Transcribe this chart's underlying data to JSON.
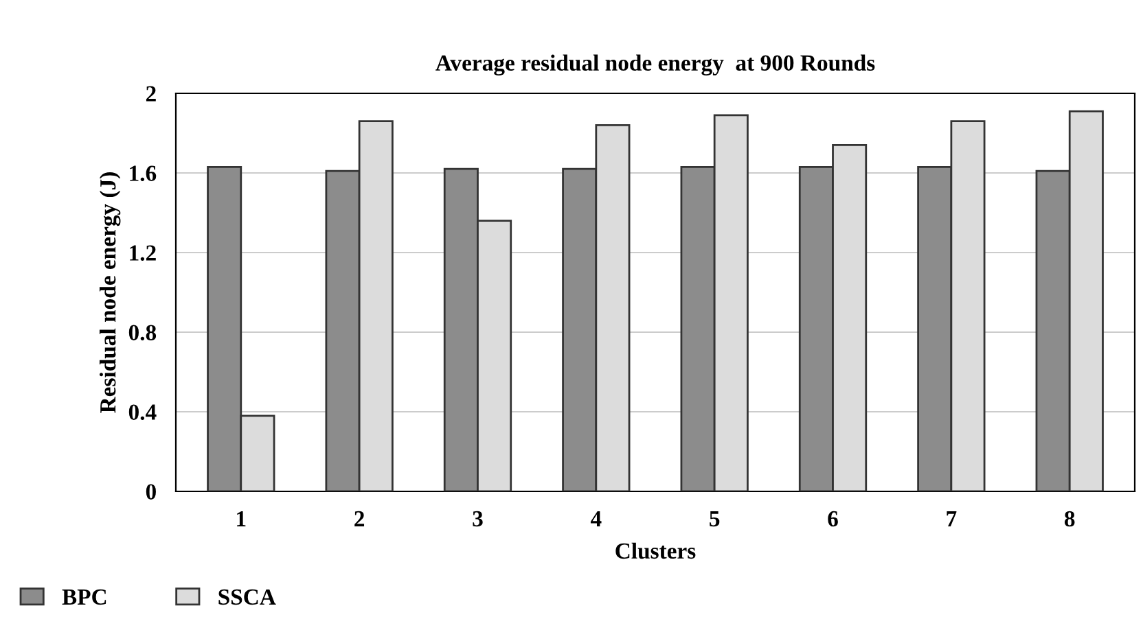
{
  "chart_data": {
    "type": "bar",
    "title": "Average residual node energy  at 900 Rounds",
    "xlabel": "Clusters",
    "ylabel": "Residual node energy (J)",
    "categories": [
      "1",
      "2",
      "3",
      "4",
      "5",
      "6",
      "7",
      "8"
    ],
    "series": [
      {
        "name": "BPC",
        "color": "#8c8c8c",
        "values": [
          1.63,
          1.61,
          1.62,
          1.62,
          1.63,
          1.63,
          1.63,
          1.61
        ]
      },
      {
        "name": "SSCA",
        "color": "#dcdcdc",
        "values": [
          0.38,
          1.86,
          1.36,
          1.84,
          1.89,
          1.74,
          1.86,
          1.91
        ]
      }
    ],
    "ylim": [
      0,
      2
    ],
    "yticks": [
      {
        "value": 0,
        "label": "0"
      },
      {
        "value": 0.4,
        "label": "0.4"
      },
      {
        "value": 0.8,
        "label": "0.8"
      },
      {
        "value": 1.2,
        "label": "1.2"
      },
      {
        "value": 1.6,
        "label": "1.6"
      },
      {
        "value": 2,
        "label": "2"
      }
    ],
    "grid": "y",
    "legend": "bottom left"
  }
}
